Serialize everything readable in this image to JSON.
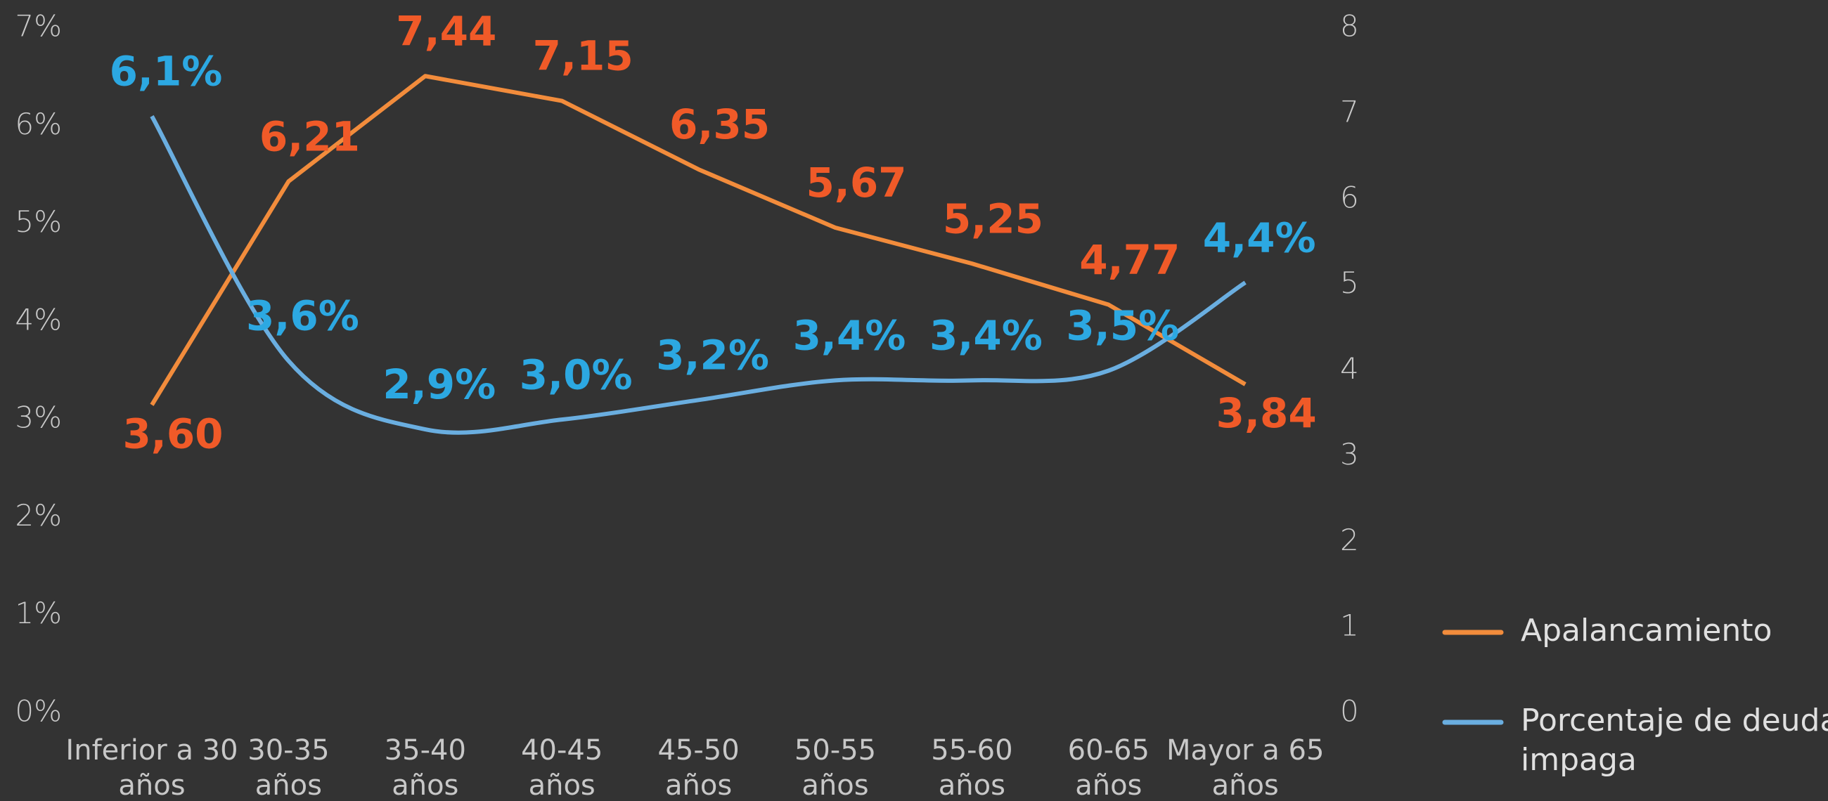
{
  "chart_data": {
    "type": "line",
    "categories": [
      "Inferior a 30 años",
      "30-35 años",
      "35-40 años",
      "40-45 años",
      "45-50 años",
      "50-55 años",
      "55-60 años",
      "60-65 años",
      "Mayor a 65 años"
    ],
    "series": [
      {
        "name": "Apalancamiento",
        "color": "#f28c3c",
        "label_color": "#f05a28",
        "axis": "y2",
        "values": [
          3.6,
          6.21,
          7.44,
          7.15,
          6.35,
          5.67,
          5.25,
          4.77,
          3.84
        ],
        "value_labels": [
          "3,60",
          "6,21",
          "7,44",
          "7,15",
          "6,35",
          "5,67",
          "5,25",
          "4,77",
          "3,84"
        ]
      },
      {
        "name": "Porcentaje de deuda impaga",
        "color": "#6aaee0",
        "label_color": "#2ca8e2",
        "axis": "y",
        "smooth": true,
        "values": [
          6.1,
          3.6,
          2.9,
          3.0,
          3.2,
          3.4,
          3.4,
          3.5,
          4.4
        ],
        "value_labels": [
          "6,1%",
          "3,6%",
          "2,9%",
          "3,0%",
          "3,2%",
          "3,4%",
          "3,4%",
          "3,5%",
          "4,4%"
        ]
      }
    ],
    "ylim": [
      0,
      7
    ],
    "yticks": [
      {
        "value": 0,
        "label": "0%"
      },
      {
        "value": 1,
        "label": "1%"
      },
      {
        "value": 2,
        "label": "2%"
      },
      {
        "value": 3,
        "label": "3%"
      },
      {
        "value": 4,
        "label": "4%"
      },
      {
        "value": 5,
        "label": "5%"
      },
      {
        "value": 6,
        "label": "6%"
      },
      {
        "value": 7,
        "label": "7%"
      }
    ],
    "y2lim": [
      0,
      8
    ],
    "y2ticks": [
      0,
      1,
      2,
      3,
      4,
      5,
      6,
      7,
      8
    ],
    "legend": "right"
  }
}
